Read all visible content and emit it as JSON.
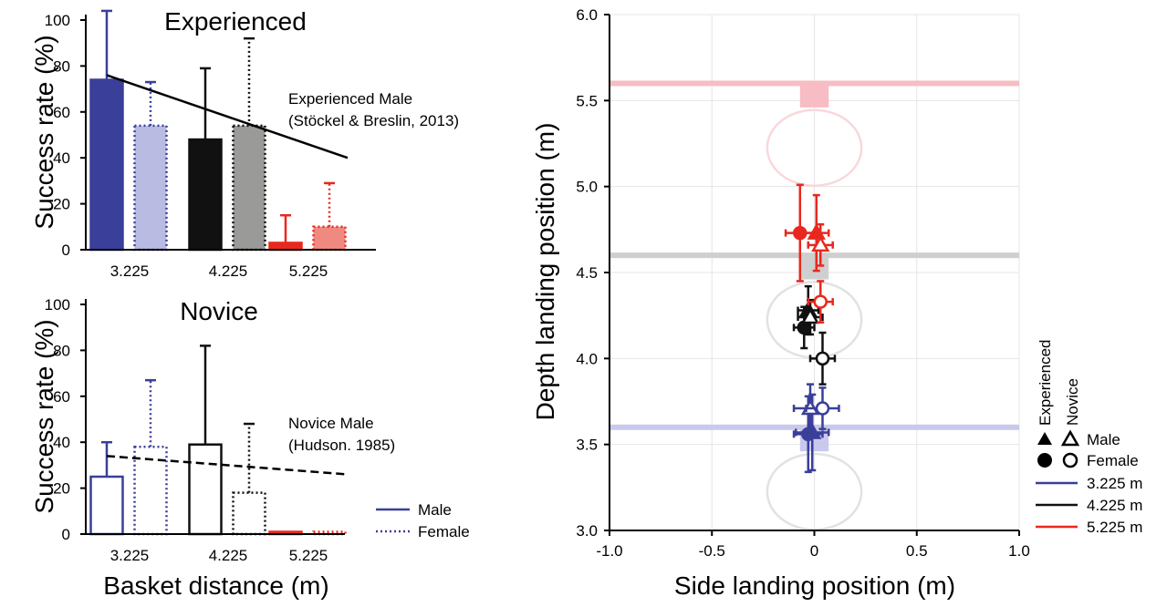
{
  "colors": {
    "blue": "#3a3f9a",
    "blue_light": "#b9bbe2",
    "black": "#111111",
    "gray": "#9a9a98",
    "red": "#e8281e",
    "red_light": "#f08a80",
    "band_red": "#f7bcc4",
    "band_gray": "#cfcfcf",
    "band_blue": "#c9c9ee"
  },
  "chart_data": [
    {
      "type": "bar",
      "title": "Experienced",
      "ylabel": "Success rate (%)",
      "xlabel": "",
      "categories": [
        "3.225",
        "4.225",
        "5.225"
      ],
      "yticks": [
        "0",
        "20",
        "40",
        "60",
        "80",
        "100"
      ],
      "ylim": [
        0,
        100
      ],
      "series": [
        {
          "name": "Male",
          "values": [
            74,
            48,
            3
          ],
          "errors": [
            30,
            31,
            12
          ]
        },
        {
          "name": "Female",
          "values": [
            54,
            54,
            10
          ],
          "errors": [
            19,
            38,
            19
          ]
        }
      ],
      "trend": {
        "label1": "Experienced Male",
        "label2": "(Stöckel & Breslin, 2013)",
        "start": [
          3.225,
          76
        ],
        "end": [
          5.225,
          40
        ],
        "style": "solid"
      }
    },
    {
      "type": "bar",
      "title": "Novice",
      "ylabel": "Success rate (%)",
      "xlabel": "Basket distance (m)",
      "categories": [
        "3.225",
        "4.225",
        "5.225"
      ],
      "yticks": [
        "0",
        "20",
        "40",
        "60",
        "80",
        "100"
      ],
      "ylim": [
        0,
        100
      ],
      "series": [
        {
          "name": "Male",
          "values": [
            25,
            39,
            1
          ],
          "errors": [
            15,
            43,
            0
          ]
        },
        {
          "name": "Female",
          "values": [
            38,
            18,
            1
          ],
          "errors": [
            29,
            30,
            0
          ]
        }
      ],
      "trend": {
        "label1": "Novice Male",
        "label2": "(Hudson. 1985)",
        "start": [
          3.225,
          34
        ],
        "end": [
          5.225,
          26
        ],
        "style": "dashed"
      },
      "legend": {
        "male": "Male",
        "female": "Female"
      }
    },
    {
      "type": "scatter",
      "xlabel": "Side landing position (m)",
      "ylabel": "Depth landing position (m)",
      "xlim": [
        -1.0,
        1.0
      ],
      "ylim": [
        3.0,
        6.0
      ],
      "xticks": [
        "-1.0",
        "-0.5",
        "0",
        "0.5",
        "1.0"
      ],
      "yticks": [
        "3.0",
        "3.5",
        "4.0",
        "4.5",
        "5.0",
        "5.5",
        "6.0"
      ],
      "grid": true,
      "baskets": [
        {
          "distance": "3.225",
          "backboard_y": 3.6,
          "center_y": 3.225
        },
        {
          "distance": "4.225",
          "backboard_y": 4.6,
          "center_y": 4.225
        },
        {
          "distance": "5.225",
          "backboard_y": 5.6,
          "center_y": 5.225
        }
      ],
      "points": [
        {
          "group": "Experienced",
          "sex": "Male",
          "distance": "3.225",
          "x": -0.01,
          "y": 3.57,
          "xerr": 0.08,
          "yerr": 0.22
        },
        {
          "group": "Experienced",
          "sex": "Female",
          "distance": "3.225",
          "x": -0.03,
          "y": 3.56,
          "xerr": 0.07,
          "yerr": 0.22
        },
        {
          "group": "Novice",
          "sex": "Male",
          "distance": "3.225",
          "x": -0.02,
          "y": 3.71,
          "xerr": 0.08,
          "yerr": 0.14
        },
        {
          "group": "Novice",
          "sex": "Female",
          "distance": "3.225",
          "x": 0.04,
          "y": 3.71,
          "xerr": 0.08,
          "yerr": 0.12
        },
        {
          "group": "Experienced",
          "sex": "Male",
          "distance": "4.225",
          "x": -0.03,
          "y": 4.28,
          "xerr": 0.05,
          "yerr": 0.14
        },
        {
          "group": "Experienced",
          "sex": "Female",
          "distance": "4.225",
          "x": -0.05,
          "y": 4.18,
          "xerr": 0.05,
          "yerr": 0.12
        },
        {
          "group": "Novice",
          "sex": "Male",
          "distance": "4.225",
          "x": -0.02,
          "y": 4.24,
          "xerr": 0.06,
          "yerr": 0.1
        },
        {
          "group": "Novice",
          "sex": "Female",
          "distance": "4.225",
          "x": 0.04,
          "y": 4.0,
          "xerr": 0.06,
          "yerr": 0.15
        },
        {
          "group": "Experienced",
          "sex": "Male",
          "distance": "5.225",
          "x": 0.01,
          "y": 4.73,
          "xerr": 0.06,
          "yerr": 0.22
        },
        {
          "group": "Experienced",
          "sex": "Female",
          "distance": "5.225",
          "x": -0.07,
          "y": 4.73,
          "xerr": 0.07,
          "yerr": 0.28
        },
        {
          "group": "Novice",
          "sex": "Male",
          "distance": "5.225",
          "x": 0.03,
          "y": 4.66,
          "xerr": 0.06,
          "yerr": 0.12
        },
        {
          "group": "Novice",
          "sex": "Female",
          "distance": "5.225",
          "x": 0.03,
          "y": 4.33,
          "xerr": 0.06,
          "yerr": 0.12
        }
      ],
      "legend": {
        "experienced": "Experienced",
        "novice": "Novice",
        "male": "Male",
        "female": "Female",
        "lines": [
          "3.225 m",
          "4.225 m",
          "5.225 m"
        ]
      }
    }
  ]
}
